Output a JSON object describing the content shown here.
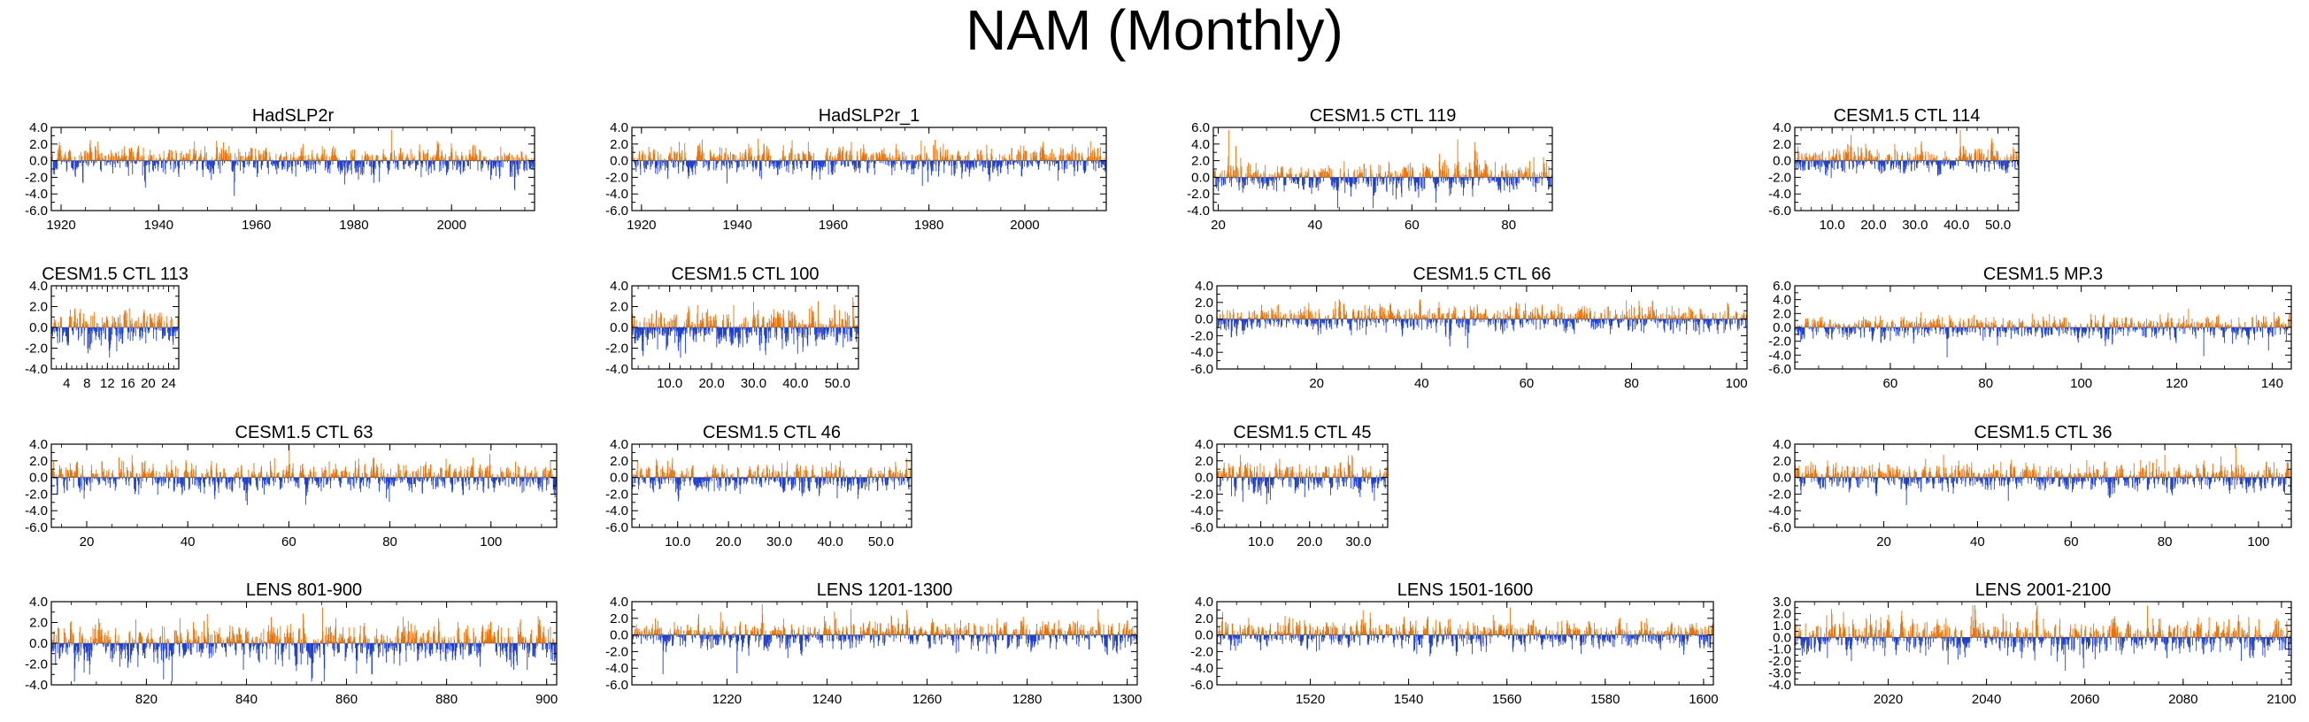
{
  "title": "NAM (Monthly)",
  "colors": {
    "positive": "#e8730c",
    "negative": "#1f3fd1",
    "frame": "#000000"
  },
  "chart_data": [
    {
      "type": "bar",
      "title": "HadSLP2r",
      "xlim": [
        1918,
        2017
      ],
      "ylim": [
        -6,
        4
      ],
      "yticks": [
        "4.0",
        "2.0",
        "0.0",
        "-2.0",
        "-4.0",
        "-6.0"
      ],
      "xticks": [
        {
          "value": 1920,
          "label": "1920"
        },
        {
          "value": 1940,
          "label": "1940"
        },
        {
          "value": 1960,
          "label": "1960"
        },
        {
          "value": 1980,
          "label": "1980"
        },
        {
          "value": 2000,
          "label": "2000"
        }
      ],
      "n_points": 1200,
      "amplitude": 1.0
    },
    {
      "type": "bar",
      "title": "HadSLP2r_1",
      "xlim": [
        1918,
        2017
      ],
      "ylim": [
        -6,
        4
      ],
      "yticks": [
        "4.0",
        "2.0",
        "0.0",
        "-2.0",
        "-4.0",
        "-6.0"
      ],
      "xticks": [
        {
          "value": 1920,
          "label": "1920"
        },
        {
          "value": 1940,
          "label": "1940"
        },
        {
          "value": 1960,
          "label": "1960"
        },
        {
          "value": 1980,
          "label": "1980"
        },
        {
          "value": 2000,
          "label": "2000"
        }
      ],
      "n_points": 1200,
      "amplitude": 1.0
    },
    {
      "type": "bar",
      "title": "CESM1.5 CTL 119",
      "xlim": [
        19,
        89
      ],
      "ylim": [
        -4,
        6
      ],
      "yticks": [
        "6.0",
        "4.0",
        "2.0",
        "0.0",
        "-2.0",
        "-4.0"
      ],
      "xticks": [
        {
          "value": 20,
          "label": "20"
        },
        {
          "value": 40,
          "label": "40"
        },
        {
          "value": 60,
          "label": "60"
        },
        {
          "value": 80,
          "label": "80"
        }
      ],
      "n_points": 840,
      "amplitude": 1.1
    },
    {
      "type": "bar",
      "title": "CESM1.5 CTL 114",
      "xlim": [
        1,
        55
      ],
      "ylim": [
        -6,
        4
      ],
      "yticks": [
        "4.0",
        "2.0",
        "0.0",
        "-2.0",
        "-4.0",
        "-6.0"
      ],
      "xticks": [
        {
          "value": 10,
          "label": "10.0"
        },
        {
          "value": 20,
          "label": "20.0"
        },
        {
          "value": 30,
          "label": "30.0"
        },
        {
          "value": 40,
          "label": "40.0"
        },
        {
          "value": 50,
          "label": "50.0"
        }
      ],
      "n_points": 650,
      "amplitude": 1.0
    },
    {
      "type": "bar",
      "title": "CESM1.5 CTL 113",
      "xlim": [
        1,
        26
      ],
      "ylim": [
        -4,
        4
      ],
      "yticks": [
        "4.0",
        "2.0",
        "0.0",
        "-2.0",
        "-4.0"
      ],
      "xticks": [
        {
          "value": 4,
          "label": "4"
        },
        {
          "value": 8,
          "label": "8"
        },
        {
          "value": 12,
          "label": "12"
        },
        {
          "value": 16,
          "label": "16"
        },
        {
          "value": 20,
          "label": "20"
        },
        {
          "value": 24,
          "label": "24"
        }
      ],
      "n_points": 300,
      "amplitude": 1.0
    },
    {
      "type": "bar",
      "title": "CESM1.5 CTL 100",
      "xlim": [
        1,
        55
      ],
      "ylim": [
        -4,
        4
      ],
      "yticks": [
        "4.0",
        "2.0",
        "0.0",
        "-2.0",
        "-4.0"
      ],
      "xticks": [
        {
          "value": 10,
          "label": "10.0"
        },
        {
          "value": 20,
          "label": "20.0"
        },
        {
          "value": 30,
          "label": "30.0"
        },
        {
          "value": 40,
          "label": "40.0"
        },
        {
          "value": 50,
          "label": "50.0"
        }
      ],
      "n_points": 650,
      "amplitude": 1.1
    },
    {
      "type": "bar",
      "title": "CESM1.5 CTL 66",
      "xlim": [
        1,
        102
      ],
      "ylim": [
        -6,
        4
      ],
      "yticks": [
        "4.0",
        "2.0",
        "0.0",
        "-2.0",
        "-4.0",
        "-6.0"
      ],
      "xticks": [
        {
          "value": 20,
          "label": "20"
        },
        {
          "value": 40,
          "label": "40"
        },
        {
          "value": 60,
          "label": "60"
        },
        {
          "value": 80,
          "label": "80"
        },
        {
          "value": 100,
          "label": "100"
        }
      ],
      "n_points": 1220,
      "amplitude": 1.0
    },
    {
      "type": "bar",
      "title": "CESM1.5 MP.3",
      "xlim": [
        40,
        144
      ],
      "ylim": [
        -6,
        6
      ],
      "yticks": [
        "6.0",
        "4.0",
        "2.0",
        "0.0",
        "-2.0",
        "-4.0",
        "-6.0"
      ],
      "xticks": [
        {
          "value": 60,
          "label": "60"
        },
        {
          "value": 80,
          "label": "80"
        },
        {
          "value": 100,
          "label": "100"
        },
        {
          "value": 120,
          "label": "120"
        },
        {
          "value": 140,
          "label": "140"
        }
      ],
      "n_points": 1240,
      "amplitude": 1.0
    },
    {
      "type": "bar",
      "title": "CESM1.5 CTL 63",
      "xlim": [
        13,
        113
      ],
      "ylim": [
        -6,
        4
      ],
      "yticks": [
        "4.0",
        "2.0",
        "0.0",
        "-2.0",
        "-4.0",
        "-6.0"
      ],
      "xticks": [
        {
          "value": 20,
          "label": "20"
        },
        {
          "value": 40,
          "label": "40"
        },
        {
          "value": 60,
          "label": "60"
        },
        {
          "value": 80,
          "label": "80"
        },
        {
          "value": 100,
          "label": "100"
        }
      ],
      "n_points": 1200,
      "amplitude": 1.0
    },
    {
      "type": "bar",
      "title": "CESM1.5 CTL 46",
      "xlim": [
        1,
        56
      ],
      "ylim": [
        -6,
        4
      ],
      "yticks": [
        "4.0",
        "2.0",
        "0.0",
        "-2.0",
        "-4.0",
        "-6.0"
      ],
      "xticks": [
        {
          "value": 10,
          "label": "10.0"
        },
        {
          "value": 20,
          "label": "20.0"
        },
        {
          "value": 30,
          "label": "30.0"
        },
        {
          "value": 40,
          "label": "40.0"
        },
        {
          "value": 50,
          "label": "50.0"
        }
      ],
      "n_points": 660,
      "amplitude": 1.0
    },
    {
      "type": "bar",
      "title": "CESM1.5 CTL 45",
      "xlim": [
        1,
        36
      ],
      "ylim": [
        -6,
        4
      ],
      "yticks": [
        "4.0",
        "2.0",
        "0.0",
        "-2.0",
        "-4.0",
        "-6.0"
      ],
      "xticks": [
        {
          "value": 10,
          "label": "10.0"
        },
        {
          "value": 20,
          "label": "20.0"
        },
        {
          "value": 30,
          "label": "30.0"
        }
      ],
      "n_points": 420,
      "amplitude": 1.1
    },
    {
      "type": "bar",
      "title": "CESM1.5 CTL 36",
      "xlim": [
        1,
        107
      ],
      "ylim": [
        -6,
        4
      ],
      "yticks": [
        "4.0",
        "2.0",
        "0.0",
        "-2.0",
        "-4.0",
        "-6.0"
      ],
      "xticks": [
        {
          "value": 20,
          "label": "20"
        },
        {
          "value": 40,
          "label": "40"
        },
        {
          "value": 60,
          "label": "60"
        },
        {
          "value": 80,
          "label": "80"
        },
        {
          "value": 100,
          "label": "100"
        }
      ],
      "n_points": 1270,
      "amplitude": 1.0
    },
    {
      "type": "bar",
      "title": "LENS 801-900",
      "xlim": [
        801,
        902
      ],
      "ylim": [
        -4,
        4
      ],
      "yticks": [
        "4.0",
        "2.0",
        "0.0",
        "-2.0",
        "-4.0"
      ],
      "xticks": [
        {
          "value": 820,
          "label": "820"
        },
        {
          "value": 840,
          "label": "840"
        },
        {
          "value": 860,
          "label": "860"
        },
        {
          "value": 880,
          "label": "880"
        },
        {
          "value": 900,
          "label": "900"
        }
      ],
      "n_points": 1200,
      "amplitude": 1.1
    },
    {
      "type": "bar",
      "title": "LENS 1201-1300",
      "xlim": [
        1201,
        1302
      ],
      "ylim": [
        -6,
        4
      ],
      "yticks": [
        "4.0",
        "2.0",
        "0.0",
        "-2.0",
        "-4.0",
        "-6.0"
      ],
      "xticks": [
        {
          "value": 1220,
          "label": "1220"
        },
        {
          "value": 1240,
          "label": "1240"
        },
        {
          "value": 1260,
          "label": "1260"
        },
        {
          "value": 1280,
          "label": "1280"
        },
        {
          "value": 1300,
          "label": "1300"
        }
      ],
      "n_points": 1200,
      "amplitude": 1.0
    },
    {
      "type": "bar",
      "title": "LENS 1501-1600",
      "xlim": [
        1501,
        1602
      ],
      "ylim": [
        -6,
        4
      ],
      "yticks": [
        "4.0",
        "2.0",
        "0.0",
        "-2.0",
        "-4.0",
        "-6.0"
      ],
      "xticks": [
        {
          "value": 1520,
          "label": "1520"
        },
        {
          "value": 1540,
          "label": "1540"
        },
        {
          "value": 1560,
          "label": "1560"
        },
        {
          "value": 1580,
          "label": "1580"
        },
        {
          "value": 1600,
          "label": "1600"
        }
      ],
      "n_points": 1200,
      "amplitude": 1.0
    },
    {
      "type": "bar",
      "title": "LENS 2001-2100",
      "xlim": [
        2001,
        2102
      ],
      "ylim": [
        -4,
        3
      ],
      "yticks": [
        "3.0",
        "2.0",
        "1.0",
        "0.0",
        "-1.0",
        "-2.0",
        "-3.0",
        "-4.0"
      ],
      "xticks": [
        {
          "value": 2020,
          "label": "2020"
        },
        {
          "value": 2040,
          "label": "2040"
        },
        {
          "value": 2060,
          "label": "2060"
        },
        {
          "value": 2080,
          "label": "2080"
        },
        {
          "value": 2100,
          "label": "2100"
        }
      ],
      "n_points": 1200,
      "amplitude": 0.9
    }
  ]
}
